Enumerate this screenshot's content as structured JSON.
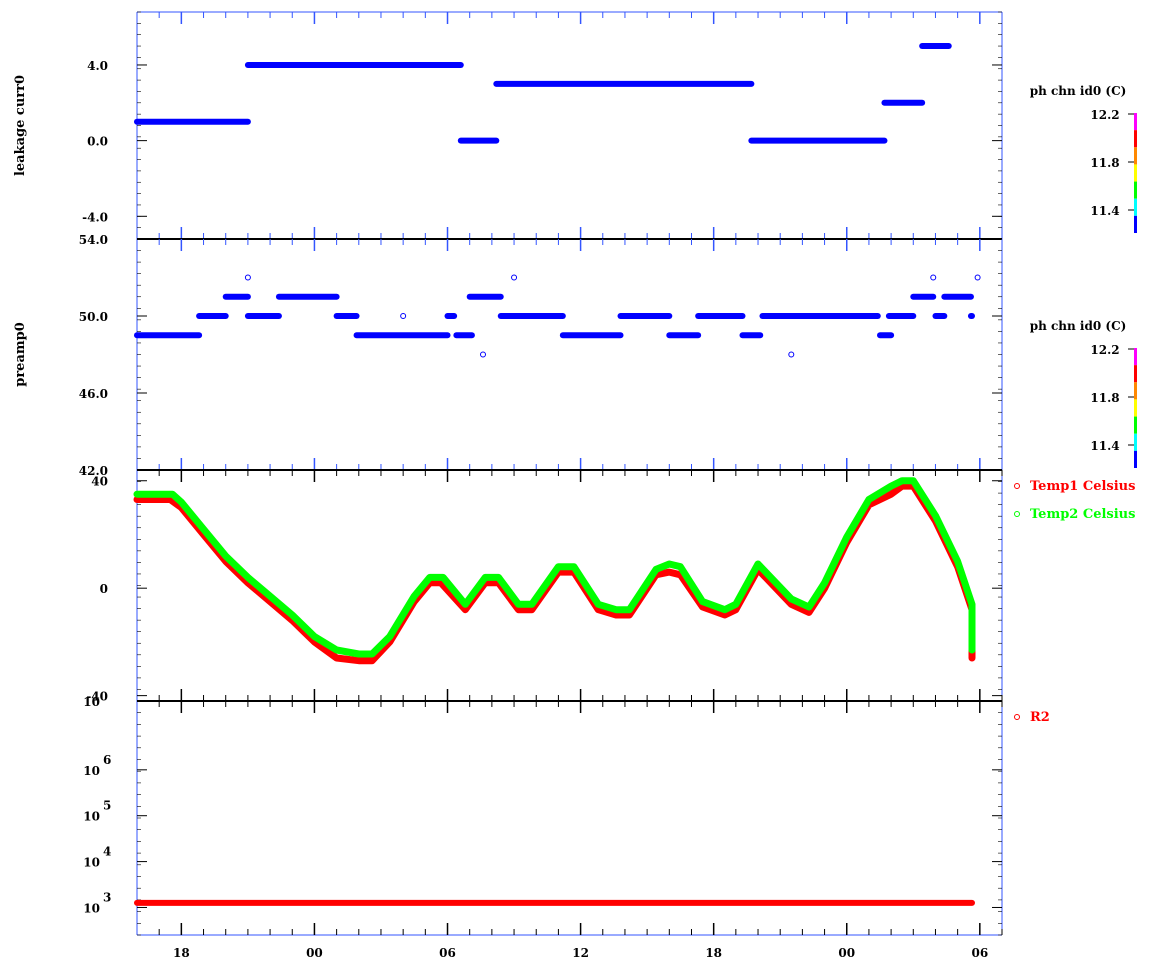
{
  "chart_data": {
    "type": "scatter",
    "x_axis": {
      "unit": "hours",
      "range": [
        16,
        55
      ],
      "tick_labels": [
        {
          "x": 18,
          "label": "18"
        },
        {
          "x": 24,
          "label": "00"
        },
        {
          "x": 30,
          "label": "06"
        },
        {
          "x": 36,
          "label": "12"
        },
        {
          "x": 42,
          "label": "18"
        },
        {
          "x": 48,
          "label": "00"
        },
        {
          "x": 54,
          "label": "06"
        }
      ]
    },
    "panels": [
      {
        "id": "leakage",
        "ylabel": "leakage curr0",
        "ylim": [
          -5.2,
          6.8
        ],
        "yticks": [
          {
            "v": 4,
            "label": "4.0"
          },
          {
            "v": 0,
            "label": "0.0"
          },
          {
            "v": -4,
            "label": "-4.0"
          }
        ],
        "colorbar": {
          "title": "ph chn id0 (C)",
          "labels": [
            "12.2",
            "11.8",
            "11.4"
          ]
        },
        "series": [
          {
            "color": "#0000ff",
            "style": "segments",
            "segments": [
              [
                16,
                21,
                1
              ],
              [
                21,
                30.6,
                4
              ],
              [
                30.6,
                32.2,
                0
              ],
              [
                32.2,
                43.7,
                3
              ],
              [
                43.7,
                49.7,
                0
              ],
              [
                49.7,
                51.4,
                2
              ],
              [
                51.4,
                52.6,
                5
              ]
            ]
          }
        ]
      },
      {
        "id": "preamp",
        "ylabel": "preamp0",
        "ylim": [
          42,
          54
        ],
        "yticks": [
          {
            "v": 54,
            "label": "54.0"
          },
          {
            "v": 50,
            "label": "50.0"
          },
          {
            "v": 46,
            "label": "46.0"
          },
          {
            "v": 42,
            "label": "42.0"
          }
        ],
        "colorbar": {
          "title": "ph chn id0 (C)",
          "labels": [
            "12.2",
            "11.8",
            "11.4"
          ]
        },
        "series": [
          {
            "color": "#0000ff",
            "style": "segments",
            "segments": [
              [
                16,
                18.8,
                49
              ],
              [
                18.8,
                20,
                50
              ],
              [
                20,
                21,
                51
              ],
              [
                21,
                22.4,
                50
              ],
              [
                22.4,
                25,
                51
              ],
              [
                25,
                25.9,
                50
              ],
              [
                25.9,
                30,
                49
              ],
              [
                30,
                30.3,
                50
              ],
              [
                30.4,
                31.1,
                49
              ],
              [
                31,
                32.4,
                51
              ],
              [
                32.4,
                35.2,
                50
              ],
              [
                35.2,
                37.8,
                49
              ],
              [
                37.8,
                40,
                50
              ],
              [
                40,
                41.3,
                49
              ],
              [
                41.3,
                43.3,
                50
              ],
              [
                43.3,
                44.1,
                49
              ],
              [
                44.2,
                49.4,
                50
              ],
              [
                49.5,
                50,
                49
              ],
              [
                49.9,
                51,
                50
              ],
              [
                51,
                51.9,
                51
              ],
              [
                52,
                52.4,
                50
              ],
              [
                52.4,
                53.6,
                51
              ],
              [
                53.6,
                54.6,
                50
              ]
            ]
          },
          {
            "color": "#0000ff",
            "style": "open-circles",
            "points": [
              [
                21,
                52
              ],
              [
                28,
                50
              ],
              [
                31.6,
                48
              ],
              [
                33,
                52
              ],
              [
                45.5,
                48
              ],
              [
                51.9,
                52
              ],
              [
                53.9,
                52
              ]
            ]
          }
        ]
      },
      {
        "id": "temp",
        "ylabel": "",
        "ylim": [
          -42,
          44
        ],
        "yticks": [
          {
            "v": 40,
            "label": "40"
          },
          {
            "v": 0,
            "label": "0"
          },
          {
            "v": -40,
            "label": "-40"
          }
        ],
        "legend": [
          {
            "label": "Temp1 Celsius",
            "color": "#ff0000"
          },
          {
            "label": "Temp2 Celsius",
            "color": "#00ff00"
          }
        ],
        "series": [
          {
            "name": "Temp1 Celsius",
            "color": "#ff0000",
            "style": "thick-line",
            "points": [
              [
                16,
                33
              ],
              [
                17.5,
                33
              ],
              [
                18,
                30
              ],
              [
                19,
                20
              ],
              [
                20,
                10
              ],
              [
                21,
                2
              ],
              [
                22,
                -5
              ],
              [
                23,
                -12
              ],
              [
                24,
                -20
              ],
              [
                25,
                -26
              ],
              [
                26,
                -27
              ],
              [
                26.6,
                -27
              ],
              [
                27.4,
                -20
              ],
              [
                28.5,
                -5
              ],
              [
                29.2,
                2
              ],
              [
                29.7,
                2
              ],
              [
                30.8,
                -8
              ],
              [
                31.7,
                2
              ],
              [
                32.3,
                2
              ],
              [
                33.2,
                -8
              ],
              [
                33.8,
                -8
              ],
              [
                35,
                6
              ],
              [
                35.7,
                6
              ],
              [
                36.8,
                -8
              ],
              [
                37.6,
                -10
              ],
              [
                38.2,
                -10
              ],
              [
                39.4,
                5
              ],
              [
                40,
                6
              ],
              [
                40.5,
                5
              ],
              [
                41.5,
                -7
              ],
              [
                42.5,
                -10
              ],
              [
                43,
                -8
              ],
              [
                44,
                7
              ],
              [
                45.5,
                -6
              ],
              [
                46.3,
                -9
              ],
              [
                47,
                0
              ],
              [
                48,
                17
              ],
              [
                49,
                31
              ],
              [
                50,
                35
              ],
              [
                50.5,
                38
              ],
              [
                51,
                38
              ],
              [
                52,
                25
              ],
              [
                53,
                8
              ],
              [
                54,
                -8
              ],
              [
                55,
                -22
              ],
              [
                55.5,
                -26
              ]
            ]
          },
          {
            "name": "Temp2 Celsius",
            "color": "#00ff00",
            "style": "thick-line",
            "points": [
              [
                16,
                35
              ],
              [
                17.6,
                35
              ],
              [
                18,
                32
              ],
              [
                19,
                22
              ],
              [
                20,
                12
              ],
              [
                21,
                4
              ],
              [
                22,
                -3
              ],
              [
                23,
                -10
              ],
              [
                24,
                -18
              ],
              [
                25,
                -23
              ],
              [
                26,
                -24.5
              ],
              [
                26.6,
                -24.5
              ],
              [
                27.4,
                -18
              ],
              [
                28.5,
                -3
              ],
              [
                29.2,
                4
              ],
              [
                29.8,
                4
              ],
              [
                30.8,
                -6
              ],
              [
                31.7,
                4
              ],
              [
                32.3,
                4
              ],
              [
                33.2,
                -6
              ],
              [
                33.8,
                -6
              ],
              [
                35,
                8
              ],
              [
                35.7,
                8
              ],
              [
                36.8,
                -6
              ],
              [
                37.6,
                -8
              ],
              [
                38.2,
                -8
              ],
              [
                39.4,
                7
              ],
              [
                40,
                9
              ],
              [
                40.5,
                8
              ],
              [
                41.5,
                -5
              ],
              [
                42.5,
                -8
              ],
              [
                43,
                -6
              ],
              [
                44,
                9
              ],
              [
                45.5,
                -4
              ],
              [
                46.3,
                -7
              ],
              [
                47,
                2
              ],
              [
                48,
                19
              ],
              [
                49,
                33
              ],
              [
                50,
                38
              ],
              [
                50.5,
                40
              ],
              [
                51,
                40
              ],
              [
                52,
                27
              ],
              [
                53,
                10
              ],
              [
                54,
                -6
              ],
              [
                55,
                -20
              ],
              [
                55.5,
                -23
              ]
            ]
          }
        ]
      },
      {
        "id": "r2",
        "ylabel": "",
        "scale": "log",
        "ylim": [
          2.4,
          7.5
        ],
        "yticks": [
          {
            "v": 3,
            "base": "10",
            "exp": "3"
          },
          {
            "v": 4,
            "base": "10",
            "exp": "4"
          },
          {
            "v": 5,
            "base": "10",
            "exp": "5"
          },
          {
            "v": 6,
            "base": "10",
            "exp": "6"
          },
          {
            "v": 7.5,
            "base": "10",
            "exp": ""
          }
        ],
        "legend": [
          {
            "label": "R2",
            "color": "#ff0000"
          }
        ],
        "series": [
          {
            "name": "R2",
            "color": "#ff0000",
            "style": "segments",
            "segments": [
              [
                16,
                55.5,
                3.1
              ]
            ]
          }
        ]
      }
    ]
  }
}
